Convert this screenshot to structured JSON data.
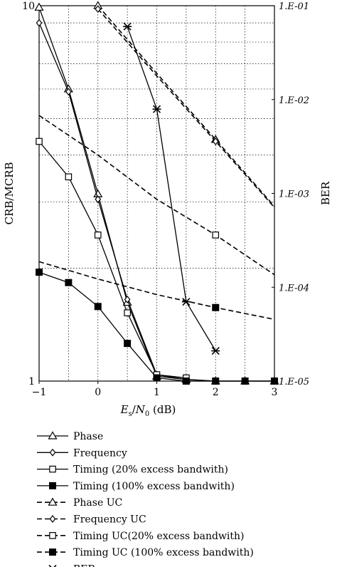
{
  "chart_data": {
    "type": "line",
    "xlabel": "Es/N0 (dB)",
    "ylabel_left": "CRB/MCRB",
    "ylabel_right": "BER",
    "x_ticks": [
      "-1",
      "0",
      "1",
      "2",
      "3"
    ],
    "y_left_ticks": [
      "1",
      "10"
    ],
    "y_right_ticks": [
      "1.E-05",
      "1.E-04",
      "1.E-03",
      "1.E-02",
      "1.E-01"
    ],
    "xlim": [
      -1,
      3
    ],
    "ylim_left": [
      1,
      10
    ],
    "ylim_right": [
      1e-05,
      0.1
    ],
    "y_left_scale": "log",
    "y_right_scale": "log",
    "grid": true,
    "legend_position": "below",
    "series": [
      {
        "name": "Phase",
        "axis": "left",
        "dash": "solid",
        "marker": "triangle-open",
        "x": [
          -1,
          -0.5,
          0,
          0.5,
          1,
          1.5,
          2,
          2.5,
          3
        ],
        "y": [
          9.9,
          6.0,
          3.15,
          1.62,
          1.03,
          1.01,
          1.0,
          1.0,
          1.0
        ]
      },
      {
        "name": "Frequency",
        "axis": "left",
        "dash": "solid",
        "marker": "diamond-open",
        "x": [
          -1,
          -0.5,
          0,
          0.5,
          1,
          1.5,
          2,
          2.5,
          3
        ],
        "y": [
          9.0,
          5.9,
          3.05,
          1.65,
          1.04,
          1.01,
          1.0,
          1.0,
          1.0
        ]
      },
      {
        "name": "Timing (20% excess bandwith)",
        "axis": "left",
        "dash": "solid",
        "marker": "square-open",
        "x": [
          -1,
          -0.5,
          0,
          0.5,
          1,
          1.5
        ],
        "y": [
          4.35,
          3.5,
          2.45,
          1.52,
          1.04,
          1.02
        ]
      },
      {
        "name": "Timing (100% excess bandwith)",
        "axis": "left",
        "dash": "solid",
        "marker": "square-filled",
        "x": [
          -1,
          -0.5,
          0,
          0.5,
          1,
          1.5,
          2,
          2.5,
          3
        ],
        "y": [
          1.95,
          1.83,
          1.58,
          1.26,
          1.02,
          1.0,
          1.0,
          1.0,
          1.0
        ]
      },
      {
        "name": "Phase UC",
        "axis": "left",
        "dash": "dashed",
        "marker": "triangle-open",
        "x": [
          0,
          1,
          2,
          3
        ],
        "y": [
          10.0,
          6.6,
          4.4,
          2.92
        ]
      },
      {
        "name": "Frequency UC",
        "axis": "left",
        "dash": "dashed",
        "marker": "diamond-open",
        "x": [
          0,
          1,
          2,
          3
        ],
        "y": [
          9.8,
          6.5,
          4.35,
          2.9
        ]
      },
      {
        "name": "Timing UC(20% excess bandwith)",
        "axis": "left",
        "dash": "dashed",
        "marker": "square-open",
        "x": [
          -1,
          0,
          1,
          2,
          3
        ],
        "y": [
          5.1,
          4.0,
          3.05,
          2.45,
          1.92
        ]
      },
      {
        "name": "Timing UC (100% excess bandwith)",
        "axis": "left",
        "dash": "dashed",
        "marker": "square-filled",
        "x": [
          -1,
          0,
          1,
          2,
          3
        ],
        "y": [
          2.08,
          1.87,
          1.7,
          1.57,
          1.46
        ]
      },
      {
        "name": "BER",
        "axis": "right",
        "dash": "solid",
        "marker": "star",
        "x": [
          0.5,
          1,
          1.5,
          2
        ],
        "y": [
          0.06,
          0.0079,
          7e-05,
          2.1e-05
        ]
      }
    ]
  }
}
